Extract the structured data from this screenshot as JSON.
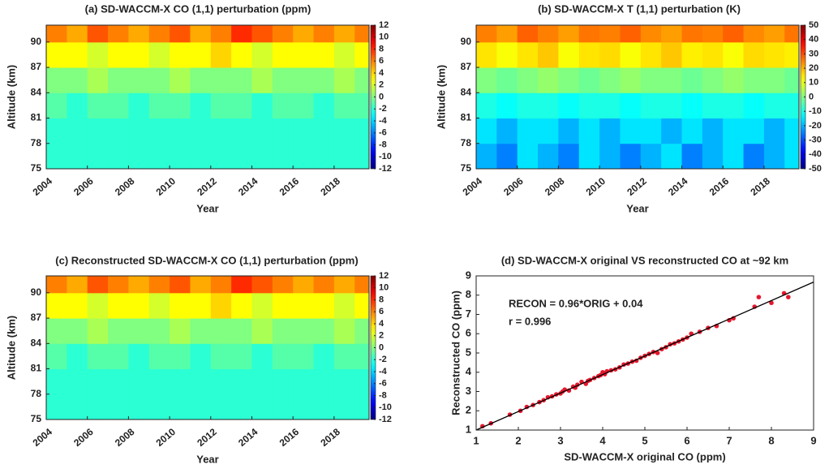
{
  "chart_data": [
    {
      "type": "contour",
      "title": "(a) SD-WACCM-X CO (1,1) perturbation (ppm)",
      "xlabel": "Year",
      "ylabel": "Altitude (km)",
      "colormap": "jet",
      "x": [
        2004,
        2005,
        2006,
        2007,
        2008,
        2009,
        2010,
        2011,
        2012,
        2013,
        2014,
        2015,
        2016,
        2017,
        2018,
        2019
      ],
      "y": [
        75,
        78,
        81,
        84,
        87,
        90
      ],
      "z": [
        [
          -2,
          -2,
          -2,
          -2,
          -2,
          -2,
          -2,
          -2,
          -2,
          -2,
          -2,
          -2,
          -2,
          -2,
          -2,
          -2
        ],
        [
          -2,
          -2,
          -2,
          -2,
          -2,
          -2,
          -2,
          -2,
          -2,
          -2,
          -2,
          -2,
          -2,
          -2,
          -2,
          -2
        ],
        [
          -1,
          -2,
          -1,
          -1,
          -2,
          -1,
          -1,
          -2,
          -1,
          -1,
          -2,
          -1,
          -1,
          -2,
          -1,
          -1
        ],
        [
          0,
          0,
          1,
          0,
          0,
          0,
          1,
          0,
          0,
          0,
          1,
          0,
          0,
          0,
          1,
          0
        ],
        [
          3,
          3,
          2,
          3,
          3,
          2,
          3,
          3,
          4,
          3,
          2,
          3,
          3,
          3,
          2,
          3
        ],
        [
          6,
          5,
          7,
          6,
          5,
          6,
          7,
          5,
          6,
          8,
          7,
          6,
          5,
          6,
          5,
          6
        ]
      ],
      "xlim": [
        2004,
        2019.7
      ],
      "ylim": [
        75,
        92
      ],
      "xticks": [
        2004,
        2006,
        2008,
        2010,
        2012,
        2014,
        2016,
        2018
      ],
      "yticks": [
        75,
        78,
        81,
        84,
        87,
        90
      ],
      "clim": [
        -12,
        12
      ],
      "cticks": [
        -12,
        -10,
        -8,
        -6,
        -4,
        -2,
        0,
        2,
        4,
        6,
        8,
        10,
        12
      ]
    },
    {
      "type": "contour",
      "title": "(b) SD-WACCM-X T (1,1) perturbation (K)",
      "xlabel": "Year",
      "ylabel": "Altitude (km)",
      "colormap": "jet",
      "x": [
        2004,
        2005,
        2006,
        2007,
        2008,
        2009,
        2010,
        2011,
        2012,
        2013,
        2014,
        2015,
        2016,
        2017,
        2018,
        2019
      ],
      "y": [
        75,
        78,
        81,
        84,
        87,
        90
      ],
      "z": [
        [
          -20,
          -25,
          -15,
          -20,
          -25,
          -15,
          -20,
          -25,
          -20,
          -15,
          -25,
          -20,
          -15,
          -25,
          -20,
          -15
        ],
        [
          -15,
          -20,
          -15,
          -15,
          -20,
          -15,
          -20,
          -15,
          -15,
          -20,
          -15,
          -20,
          -15,
          -15,
          -20,
          -15
        ],
        [
          -10,
          -12,
          -10,
          -10,
          -12,
          -10,
          -10,
          -12,
          -10,
          -10,
          -12,
          -10,
          -10,
          -12,
          -10,
          -10
        ],
        [
          0,
          -2,
          0,
          2,
          0,
          -2,
          0,
          2,
          0,
          0,
          -2,
          0,
          2,
          0,
          0,
          -2
        ],
        [
          15,
          12,
          15,
          18,
          12,
          15,
          16,
          12,
          15,
          18,
          14,
          15,
          12,
          16,
          15,
          14
        ],
        [
          25,
          22,
          28,
          25,
          22,
          26,
          25,
          28,
          24,
          22,
          26,
          25,
          28,
          24,
          22,
          26
        ]
      ],
      "xlim": [
        2004,
        2019.7
      ],
      "ylim": [
        75,
        92
      ],
      "xticks": [
        2004,
        2006,
        2008,
        2010,
        2012,
        2014,
        2016,
        2018
      ],
      "yticks": [
        75,
        78,
        81,
        84,
        87,
        90
      ],
      "clim": [
        -50,
        50
      ],
      "cticks": [
        -50,
        -40,
        -30,
        -20,
        -10,
        0,
        10,
        20,
        30,
        40,
        50
      ]
    },
    {
      "type": "contour",
      "title": "(c) Reconstructed SD-WACCM-X CO (1,1) perturbation (ppm)",
      "xlabel": "Year",
      "ylabel": "Altitude (km)",
      "colormap": "jet",
      "x": [
        2004,
        2005,
        2006,
        2007,
        2008,
        2009,
        2010,
        2011,
        2012,
        2013,
        2014,
        2015,
        2016,
        2017,
        2018,
        2019
      ],
      "y": [
        75,
        78,
        81,
        84,
        87,
        90
      ],
      "z": [
        [
          -2,
          -2,
          -2,
          -2,
          -2,
          -2,
          -2,
          -2,
          -2,
          -2,
          -2,
          -2,
          -2,
          -2,
          -2,
          -2
        ],
        [
          -2,
          -2,
          -2,
          -2,
          -2,
          -2,
          -2,
          -2,
          -2,
          -2,
          -2,
          -2,
          -2,
          -2,
          -2,
          -2
        ],
        [
          -1,
          -2,
          -1,
          -1,
          -2,
          -1,
          -1,
          -2,
          -1,
          -1,
          -2,
          -1,
          -1,
          -2,
          -1,
          -1
        ],
        [
          0,
          0,
          1,
          0,
          0,
          0,
          1,
          0,
          0,
          0,
          1,
          0,
          0,
          0,
          1,
          0
        ],
        [
          3,
          3,
          2,
          3,
          3,
          2,
          3,
          3,
          4,
          3,
          2,
          3,
          3,
          3,
          2,
          3
        ],
        [
          6,
          5,
          7,
          6,
          5,
          6,
          7,
          5,
          6,
          8,
          7,
          6,
          5,
          6,
          5,
          6
        ]
      ],
      "xlim": [
        2004,
        2019.7
      ],
      "ylim": [
        75,
        92
      ],
      "xticks": [
        2004,
        2006,
        2008,
        2010,
        2012,
        2014,
        2016,
        2018
      ],
      "yticks": [
        75,
        78,
        81,
        84,
        87,
        90
      ],
      "clim": [
        -12,
        12
      ],
      "cticks": [
        -12,
        -10,
        -8,
        -6,
        -4,
        -2,
        0,
        2,
        4,
        6,
        8,
        10,
        12
      ]
    },
    {
      "type": "scatter",
      "title": "(d) SD-WACCM-X original VS reconstructed CO at ~92 km",
      "xlabel": "SD-WACCM-X original CO (ppm)",
      "ylabel": "Reconstructed CO (ppm)",
      "annotations": [
        "RECON = 0.96*ORIG + 0.04",
        "r = 0.996"
      ],
      "fit": {
        "slope": 0.96,
        "intercept": 0.04
      },
      "color": "#e3182d",
      "line_color": "#000000",
      "x": [
        1.15,
        1.35,
        1.8,
        2.05,
        2.2,
        2.35,
        2.5,
        2.6,
        2.7,
        2.8,
        2.9,
        3.0,
        3.05,
        3.1,
        3.2,
        3.3,
        3.35,
        3.4,
        3.5,
        3.6,
        3.65,
        3.7,
        3.8,
        3.9,
        3.95,
        4.0,
        4.05,
        4.1,
        4.2,
        4.3,
        4.4,
        4.5,
        4.6,
        4.7,
        4.8,
        4.9,
        5.0,
        5.1,
        5.2,
        5.3,
        5.4,
        5.5,
        5.6,
        5.7,
        5.8,
        5.9,
        6.0,
        6.1,
        6.3,
        6.5,
        6.7,
        7.0,
        7.1,
        7.6,
        7.7,
        8.0,
        8.3,
        8.4
      ],
      "y": [
        1.2,
        1.35,
        1.8,
        2.0,
        2.2,
        2.3,
        2.45,
        2.55,
        2.7,
        2.75,
        2.85,
        2.9,
        3.0,
        3.1,
        3.05,
        3.25,
        3.2,
        3.35,
        3.5,
        3.4,
        3.55,
        3.6,
        3.7,
        3.8,
        3.85,
        4.0,
        3.9,
        4.05,
        4.1,
        4.15,
        4.25,
        4.4,
        4.45,
        4.55,
        4.6,
        4.75,
        4.85,
        4.95,
        5.05,
        5.0,
        5.2,
        5.3,
        5.45,
        5.5,
        5.6,
        5.7,
        5.8,
        6.0,
        6.1,
        6.3,
        6.4,
        6.7,
        6.8,
        7.4,
        7.9,
        7.6,
        8.1,
        7.9
      ],
      "xlim": [
        1,
        9
      ],
      "ylim": [
        1,
        9
      ],
      "xticks": [
        1,
        2,
        3,
        4,
        5,
        6,
        7,
        8,
        9
      ],
      "yticks": [
        1,
        2,
        3,
        4,
        5,
        6,
        7,
        8,
        9
      ]
    }
  ]
}
